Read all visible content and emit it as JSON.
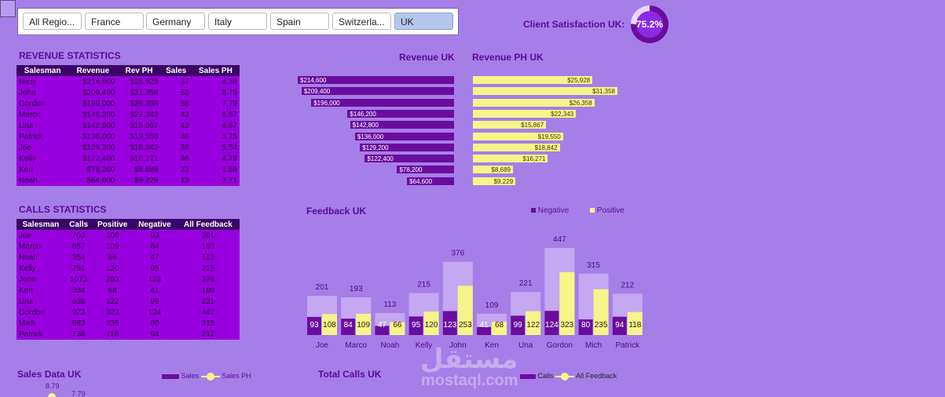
{
  "slicer": {
    "options": [
      "All Regio...",
      "France",
      "Germany",
      "Italy",
      "Spain",
      "Switzerla...",
      "UK"
    ],
    "selected": "UK"
  },
  "satisfaction": {
    "label": "Client Satisfaction UK:",
    "value": "75.2%",
    "fraction": 0.752
  },
  "revenue_stats": {
    "title": "REVENUE STATISTICS",
    "headers": [
      "Salesman",
      "Revenue",
      "Rev PH",
      "Sales",
      "Sales PH"
    ],
    "rows": [
      [
        "Mich",
        "$214,600",
        "$25,928",
        "37",
        "4.36"
      ],
      [
        "John",
        "$209,400",
        "$31,358",
        "58",
        "8.79"
      ],
      [
        "Gordon",
        "$196,000",
        "$26,358",
        "58",
        "7.79"
      ],
      [
        "Marco",
        "$146,200",
        "$22,343",
        "43",
        "6.57"
      ],
      [
        "Una",
        "$142,800",
        "$15,867",
        "42",
        "4.67"
      ],
      [
        "Patrick",
        "$136,000",
        "$19,550",
        "40",
        "5.75"
      ],
      [
        "Joe",
        "$129,200",
        "$18,842",
        "38",
        "5.54"
      ],
      [
        "Kelly",
        "$122,400",
        "$16,271",
        "36",
        "4.78"
      ],
      [
        "Ken",
        "$78,200",
        "$8,689",
        "23",
        "2.56"
      ],
      [
        "Noah",
        "$64,600",
        "$9,229",
        "19",
        "2.71"
      ]
    ]
  },
  "calls_stats": {
    "title": "CALLS STATISTICS",
    "headers": [
      "Salesman",
      "Calls",
      "Positive",
      "Negative",
      "All Feedback"
    ],
    "rows": [
      [
        "Joe",
        "703",
        "108",
        "93",
        "201"
      ],
      [
        "Marco",
        "657",
        "109",
        "84",
        "193"
      ],
      [
        "Noah",
        "354",
        "66",
        "47",
        "113"
      ],
      [
        "Kelly",
        "751",
        "120",
        "95",
        "215"
      ],
      [
        "John",
        "1073",
        "253",
        "123",
        "376"
      ],
      [
        "Ken",
        "334",
        "68",
        "41",
        "109"
      ],
      [
        "Una",
        "638",
        "122",
        "99",
        "221"
      ],
      [
        "Gordon",
        "973",
        "323",
        "124",
        "447"
      ],
      [
        "Mich",
        "683",
        "235",
        "80",
        "315"
      ],
      [
        "Patrick",
        "738",
        "118",
        "94",
        "212"
      ]
    ]
  },
  "colors": {
    "background": "#a67ee8",
    "purple_dark": "#6a0d9e",
    "yellow": "#f5f58a",
    "light_purple": "#c4a8f2",
    "table_bg": "#9900e0",
    "table_header": "#3c0466"
  },
  "footer": {
    "sales_title": "Sales Data UK",
    "sales_legend": [
      "Sales",
      "Sales PH"
    ],
    "sales_peek_values": [
      "8.79",
      "7.79"
    ],
    "calls_title": "Total Calls UK",
    "calls_legend": [
      "Calls",
      "All Feedback"
    ]
  },
  "watermark": {
    "arabic": "مستقل",
    "latin": "mostaql.com"
  },
  "chart_data": [
    {
      "type": "bar",
      "title": "Revenue UK",
      "orientation": "horizontal",
      "categories": [
        "Mich",
        "John",
        "Gordon",
        "Marco",
        "Una",
        "Patrick",
        "Joe",
        "Kelly",
        "Ken",
        "Noah"
      ],
      "values": [
        214600,
        209400,
        196000,
        146200,
        142800,
        136000,
        129200,
        122400,
        78200,
        64600
      ],
      "labels": [
        "$214,600",
        "$209,400",
        "$196,000",
        "$146,200",
        "$142,800",
        "$136,000",
        "$129,200",
        "$122,400",
        "$78,200",
        "$64,600"
      ],
      "xlim": [
        0,
        214600
      ],
      "direction": "right-to-left"
    },
    {
      "type": "bar",
      "title": "Revenue PH UK",
      "orientation": "horizontal",
      "categories": [
        "Mich",
        "John",
        "Gordon",
        "Marco",
        "Una",
        "Patrick",
        "Joe",
        "Kelly",
        "Ken",
        "Noah"
      ],
      "values": [
        25928,
        31358,
        26358,
        22343,
        15867,
        19550,
        18842,
        16271,
        8689,
        9229
      ],
      "labels": [
        "$25,928",
        "$31,358",
        "$26,358",
        "$22,343",
        "$15,867",
        "$19,550",
        "$18,842",
        "$16,271",
        "$8,689",
        "$9,229"
      ],
      "xlim": [
        0,
        31358
      ]
    },
    {
      "type": "bar",
      "title": "Feedback UK",
      "categories": [
        "Joe",
        "Marco",
        "Noah",
        "Kelly",
        "John",
        "Ken",
        "Una",
        "Gordon",
        "Mich",
        "Patrick"
      ],
      "series": [
        {
          "name": "Negative",
          "values": [
            93,
            84,
            47,
            95,
            123,
            41,
            99,
            124,
            80,
            94
          ]
        },
        {
          "name": "Positive",
          "values": [
            108,
            109,
            66,
            120,
            253,
            68,
            122,
            323,
            235,
            118
          ]
        }
      ],
      "totals": [
        201,
        193,
        113,
        215,
        376,
        109,
        221,
        447,
        315,
        212
      ],
      "ylim": [
        0,
        447
      ],
      "legend": "top-right"
    }
  ]
}
